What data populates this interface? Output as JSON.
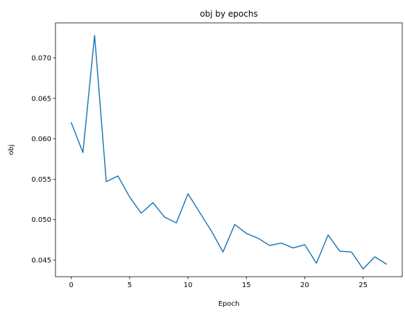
{
  "chart_data": {
    "type": "line",
    "title": "obj by epochs",
    "xlabel": "Epoch",
    "ylabel": "obj",
    "xlim": [
      -1.35,
      28.35
    ],
    "ylim": [
      0.04294,
      0.07434
    ],
    "xticks": [
      0,
      5,
      10,
      15,
      20,
      25
    ],
    "xtick_labels": [
      "0",
      "5",
      "10",
      "15",
      "20",
      "25"
    ],
    "yticks": [
      0.045,
      0.05,
      0.055,
      0.06,
      0.065,
      0.07
    ],
    "ytick_labels": [
      "0.045",
      "0.050",
      "0.055",
      "0.060",
      "0.065",
      "0.070"
    ],
    "grid": false,
    "line_color": "#1f77b4",
    "series": [
      {
        "x": [
          0,
          1,
          2,
          3,
          4,
          5,
          6,
          7,
          8,
          9,
          10,
          11,
          12,
          13,
          14,
          15,
          16,
          17,
          18,
          19,
          20,
          21,
          22,
          23,
          24,
          25,
          26,
          27
        ],
        "values": [
          0.062,
          0.0583,
          0.0728,
          0.0547,
          0.0554,
          0.0528,
          0.0508,
          0.0521,
          0.0503,
          0.0496,
          0.0532,
          0.0509,
          0.0486,
          0.046,
          0.0494,
          0.0483,
          0.0477,
          0.0468,
          0.0471,
          0.0465,
          0.0469,
          0.0446,
          0.0481,
          0.0461,
          0.046,
          0.0439,
          0.0454,
          0.0445
        ]
      }
    ]
  }
}
